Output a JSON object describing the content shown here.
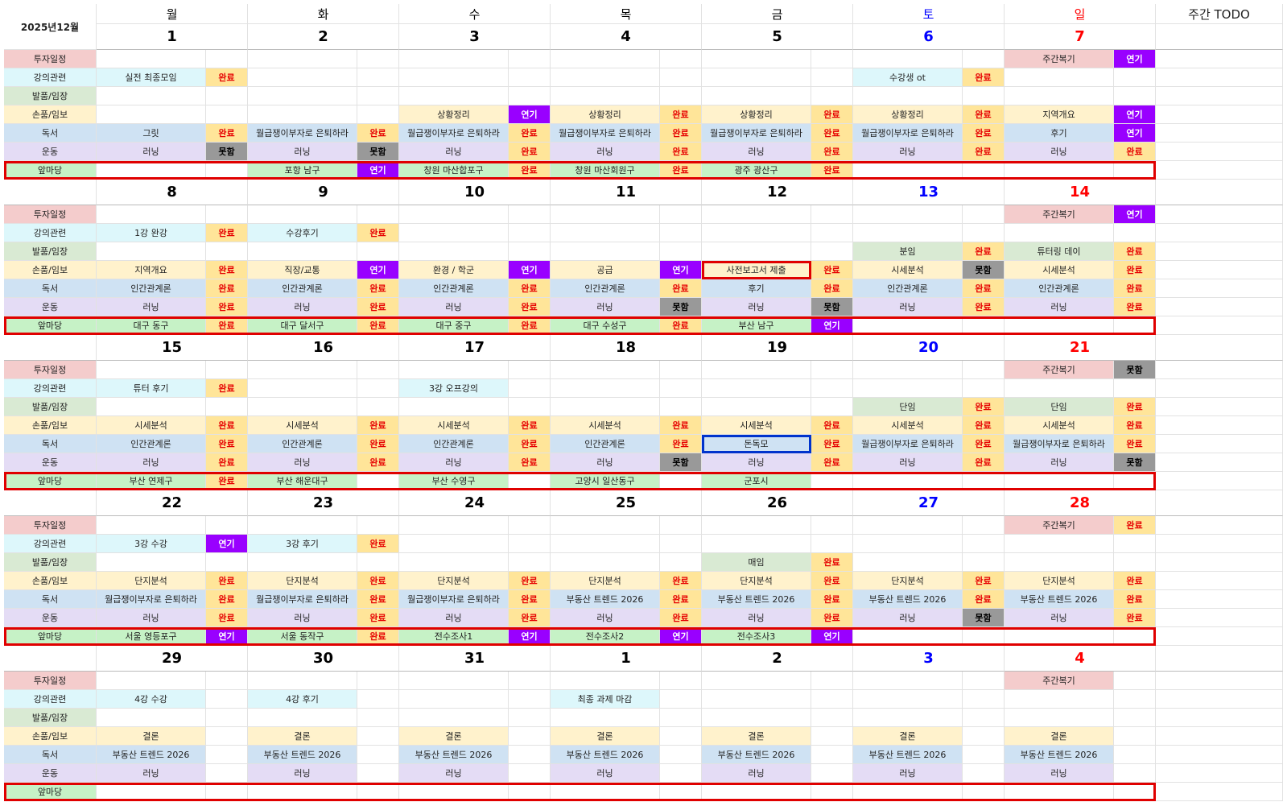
{
  "header": {
    "month": "2025년12월",
    "days": [
      "월",
      "화",
      "수",
      "목",
      "금",
      "토",
      "일"
    ],
    "todo": "주간 TODO"
  },
  "day_colors": [
    "#000000",
    "#000000",
    "#000000",
    "#000000",
    "#000000",
    "#0000ff",
    "#ff0000"
  ],
  "categories": [
    {
      "name": "투자일정",
      "color": "#f4cccc"
    },
    {
      "name": "강의관련",
      "color": "#ddf7fb"
    },
    {
      "name": "발품/임장",
      "color": "#d9ead3"
    },
    {
      "name": "손품/임보",
      "color": "#fff2cc"
    },
    {
      "name": "독서",
      "color": "#cfe2f3"
    },
    {
      "name": "운동",
      "color": "#e4dcf5"
    },
    {
      "name": "앞마당",
      "color": "#c6f2c6"
    }
  ],
  "status_styles": {
    "완료": {
      "bg": "#ffe599",
      "color": "#e60000"
    },
    "연기": {
      "bg": "#9900ff",
      "color": "#ffffff"
    },
    "못함": {
      "bg": "#999999",
      "color": "#000000"
    }
  },
  "weeks": [
    {
      "dates": [
        1,
        2,
        3,
        4,
        5,
        6,
        7
      ],
      "rows": [
        [
          null,
          null,
          null,
          null,
          null,
          null,
          [
            "주간복기",
            "연기"
          ]
        ],
        [
          [
            "실전 최종모임",
            "완료"
          ],
          null,
          null,
          null,
          null,
          [
            "수강생 ot",
            "완료"
          ],
          null
        ],
        [
          null,
          null,
          null,
          null,
          null,
          null,
          null
        ],
        [
          null,
          null,
          [
            "상황정리",
            "연기"
          ],
          [
            "상황정리",
            "완료"
          ],
          [
            "상황정리",
            "완료"
          ],
          [
            "상황정리",
            "완료"
          ],
          [
            "지역개요",
            "연기"
          ]
        ],
        [
          [
            "그릿",
            "완료"
          ],
          [
            "월급쟁이부자로 은퇴하라",
            "완료"
          ],
          [
            "월급쟁이부자로 은퇴하라",
            "완료"
          ],
          [
            "월급쟁이부자로 은퇴하라",
            "완료"
          ],
          [
            "월급쟁이부자로 은퇴하라",
            "완료"
          ],
          [
            "월급쟁이부자로 은퇴하라",
            "완료"
          ],
          [
            "후기",
            "연기"
          ]
        ],
        [
          [
            "러닝",
            "못함"
          ],
          [
            "러닝",
            "못함"
          ],
          [
            "러닝",
            "완료"
          ],
          [
            "러닝",
            "완료"
          ],
          [
            "러닝",
            "완료"
          ],
          [
            "러닝",
            "완료"
          ],
          [
            "러닝",
            "완료"
          ]
        ],
        [
          null,
          [
            "포항 남구",
            "연기"
          ],
          [
            "창원 마산합포구",
            "완료"
          ],
          [
            "창원 마산회원구",
            "완료"
          ],
          [
            "광주 광산구",
            "완료"
          ],
          null,
          null
        ]
      ]
    },
    {
      "dates": [
        8,
        9,
        10,
        11,
        12,
        13,
        14
      ],
      "rows": [
        [
          null,
          null,
          null,
          null,
          null,
          null,
          [
            "주간복기",
            "연기"
          ]
        ],
        [
          [
            "1강 완강",
            "완료"
          ],
          [
            "수강후기",
            "완료"
          ],
          null,
          null,
          null,
          null,
          null
        ],
        [
          null,
          null,
          null,
          null,
          null,
          [
            "분임",
            "완료"
          ],
          [
            "튜터링 데이",
            "완료"
          ]
        ],
        [
          [
            "지역개요",
            "완료"
          ],
          [
            "직장/교통",
            "연기"
          ],
          [
            "환경 / 학군",
            "연기"
          ],
          [
            "공급",
            "연기"
          ],
          [
            "사전보고서 제출",
            "완료",
            "#e00000"
          ],
          [
            "시세분석",
            "못함"
          ],
          [
            "시세분석",
            "완료"
          ]
        ],
        [
          [
            "인간관계론",
            "완료"
          ],
          [
            "인간관계론",
            "완료"
          ],
          [
            "인간관계론",
            "완료"
          ],
          [
            "인간관계론",
            "완료"
          ],
          [
            "후기",
            "완료"
          ],
          [
            "인간관계론",
            "완료"
          ],
          [
            "인간관계론",
            "완료"
          ]
        ],
        [
          [
            "러닝",
            "완료"
          ],
          [
            "러닝",
            "완료"
          ],
          [
            "러닝",
            "완료"
          ],
          [
            "러닝",
            "못함"
          ],
          [
            "러닝",
            "못함"
          ],
          [
            "러닝",
            "완료"
          ],
          [
            "러닝",
            "완료"
          ]
        ],
        [
          [
            "대구 동구",
            "완료"
          ],
          [
            "대구 달서구",
            "완료"
          ],
          [
            "대구 중구",
            "완료"
          ],
          [
            "대구 수성구",
            "완료"
          ],
          [
            "부산 남구",
            "연기"
          ],
          null,
          null
        ]
      ]
    },
    {
      "dates": [
        15,
        16,
        17,
        18,
        19,
        20,
        21
      ],
      "rows": [
        [
          null,
          null,
          null,
          null,
          null,
          null,
          [
            "주간복기",
            "못함"
          ]
        ],
        [
          [
            "튜터 후기",
            "완료"
          ],
          null,
          [
            "3강 오프강의",
            null
          ],
          null,
          null,
          null,
          null
        ],
        [
          null,
          null,
          null,
          null,
          null,
          [
            "단임",
            "완료"
          ],
          [
            "단임",
            "완료"
          ]
        ],
        [
          [
            "시세분석",
            "완료"
          ],
          [
            "시세분석",
            "완료"
          ],
          [
            "시세분석",
            "완료"
          ],
          [
            "시세분석",
            "완료"
          ],
          [
            "시세분석",
            "완료"
          ],
          [
            "시세분석",
            "완료"
          ],
          [
            "시세분석",
            "완료"
          ]
        ],
        [
          [
            "인간관계론",
            "완료"
          ],
          [
            "인간관계론",
            "완료"
          ],
          [
            "인간관계론",
            "완료"
          ],
          [
            "인간관계론",
            "완료"
          ],
          [
            "돈독모",
            "완료",
            "#0033cc"
          ],
          [
            "월급쟁이부자로 은퇴하라",
            "완료"
          ],
          [
            "월급쟁이부자로 은퇴하라",
            "완료"
          ]
        ],
        [
          [
            "러닝",
            "완료"
          ],
          [
            "러닝",
            "완료"
          ],
          [
            "러닝",
            "완료"
          ],
          [
            "러닝",
            "못함"
          ],
          [
            "러닝",
            "완료"
          ],
          [
            "러닝",
            "완료"
          ],
          [
            "러닝",
            "못함"
          ]
        ],
        [
          [
            "부산 연제구",
            "완료"
          ],
          [
            "부산 해운대구",
            null
          ],
          [
            "부산 수영구",
            null
          ],
          [
            "고양시 일산동구",
            null
          ],
          [
            "군포시",
            null
          ],
          null,
          null
        ]
      ]
    },
    {
      "dates": [
        22,
        23,
        24,
        25,
        26,
        27,
        28
      ],
      "rows": [
        [
          null,
          null,
          null,
          null,
          null,
          null,
          [
            "주간복기",
            "완료"
          ]
        ],
        [
          [
            "3강 수강",
            "연기"
          ],
          [
            "3강 후기",
            "완료"
          ],
          null,
          null,
          null,
          null,
          null
        ],
        [
          null,
          null,
          null,
          null,
          [
            "매임",
            "완료"
          ],
          null,
          null
        ],
        [
          [
            "단지분석",
            "완료"
          ],
          [
            "단지분석",
            "완료"
          ],
          [
            "단지분석",
            "완료"
          ],
          [
            "단지분석",
            "완료"
          ],
          [
            "단지분석",
            "완료"
          ],
          [
            "단지분석",
            "완료"
          ],
          [
            "단지분석",
            "완료"
          ]
        ],
        [
          [
            "월급쟁이부자로 은퇴하라",
            "완료"
          ],
          [
            "월급쟁이부자로 은퇴하라",
            "완료"
          ],
          [
            "월급쟁이부자로 은퇴하라",
            "완료"
          ],
          [
            "부동산 트렌드 2026",
            "완료"
          ],
          [
            "부동산 트렌드 2026",
            "완료"
          ],
          [
            "부동산 트렌드 2026",
            "완료"
          ],
          [
            "부동산 트렌드 2026",
            "완료"
          ]
        ],
        [
          [
            "러닝",
            "완료"
          ],
          [
            "러닝",
            "완료"
          ],
          [
            "러닝",
            "완료"
          ],
          [
            "러닝",
            "완료"
          ],
          [
            "러닝",
            "완료"
          ],
          [
            "러닝",
            "못함"
          ],
          [
            "러닝",
            "완료"
          ]
        ],
        [
          [
            "서울 영등포구",
            "연기"
          ],
          [
            "서울 동작구",
            "완료"
          ],
          [
            "전수조사1",
            "연기"
          ],
          [
            "전수조사2",
            "연기"
          ],
          [
            "전수조사3",
            "연기"
          ],
          null,
          null
        ]
      ]
    },
    {
      "dates": [
        29,
        30,
        31,
        1,
        2,
        3,
        4
      ],
      "rows": [
        [
          null,
          null,
          null,
          null,
          null,
          null,
          [
            "주간복기",
            null
          ]
        ],
        [
          [
            "4강 수강",
            null
          ],
          [
            "4강 후기",
            null
          ],
          null,
          [
            "최종 과제 마감",
            null
          ],
          null,
          null,
          null
        ],
        [
          null,
          null,
          null,
          null,
          null,
          null,
          null
        ],
        [
          [
            "결론",
            null
          ],
          [
            "결론",
            null
          ],
          [
            "결론",
            null
          ],
          [
            "결론",
            null
          ],
          [
            "결론",
            null
          ],
          [
            "결론",
            null
          ],
          [
            "결론",
            null
          ]
        ],
        [
          [
            "부동산 트렌드 2026",
            null
          ],
          [
            "부동산 트렌드 2026",
            null
          ],
          [
            "부동산 트렌드 2026",
            null
          ],
          [
            "부동산 트렌드 2026",
            null
          ],
          [
            "부동산 트렌드 2026",
            null
          ],
          [
            "부동산 트렌드 2026",
            null
          ],
          [
            "부동산 트렌드 2026",
            null
          ]
        ],
        [
          [
            "러닝",
            null
          ],
          [
            "러닝",
            null
          ],
          [
            "러닝",
            null
          ],
          [
            "러닝",
            null
          ],
          [
            "러닝",
            null
          ],
          [
            "러닝",
            null
          ],
          [
            "러닝",
            null
          ]
        ],
        [
          null,
          null,
          null,
          null,
          null,
          null,
          null
        ]
      ]
    }
  ]
}
